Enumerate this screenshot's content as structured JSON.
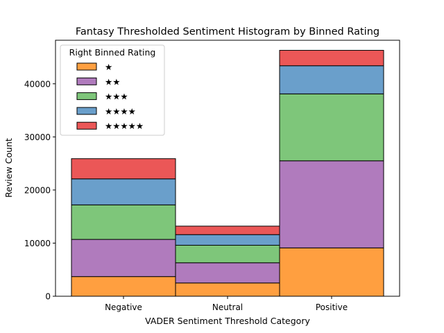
{
  "chart_data": {
    "type": "bar",
    "stacked": true,
    "title": "Fantasy Thresholded Sentiment Histogram by Binned Rating",
    "xlabel": "VADER Sentiment Threshold Category",
    "ylabel": "Review Count",
    "categories": [
      "Negative",
      "Neutral",
      "Positive"
    ],
    "ylim": [
      0,
      48200
    ],
    "yticks": [
      0,
      10000,
      20000,
      30000,
      40000
    ],
    "grid": false,
    "legend": {
      "title": "Right Binned Rating",
      "placement": "top-left"
    },
    "series": [
      {
        "name": "★",
        "color": "#ff9f40",
        "values": [
          3700,
          2500,
          9100
        ]
      },
      {
        "name": "★★",
        "color": "#b07bbd",
        "values": [
          7000,
          3800,
          16400
        ]
      },
      {
        "name": "★★★",
        "color": "#7ec67a",
        "values": [
          6500,
          3300,
          12600
        ]
      },
      {
        "name": "★★★★",
        "color": "#6a9fcb",
        "values": [
          4900,
          2000,
          5300
        ]
      },
      {
        "name": "★★★★★",
        "color": "#eb5757",
        "values": [
          3800,
          1600,
          2900
        ]
      }
    ]
  }
}
